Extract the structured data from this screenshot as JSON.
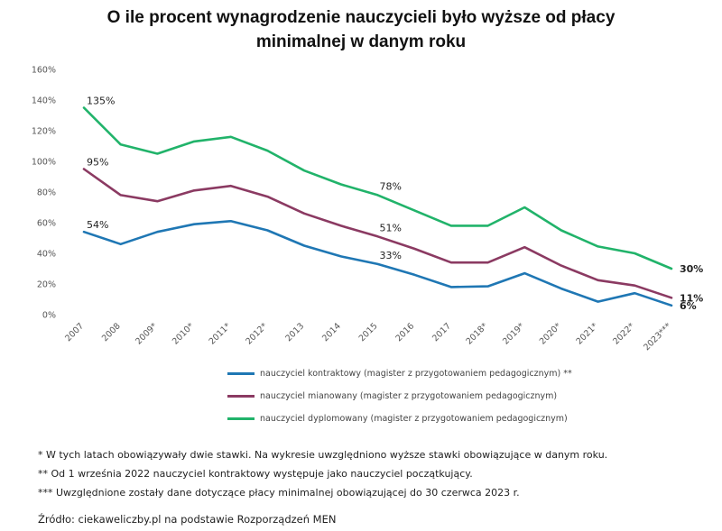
{
  "title_lines": [
    "O ile procent wynagrodzenie nauczycieli było wyższe od płacy",
    "minimalnej w danym roku"
  ],
  "chart_data": {
    "type": "line",
    "title": "O ile procent wynagrodzenie nauczycieli było wyższe od płacy minimalnej w danym roku",
    "categories": [
      "2007",
      "2008",
      "2009*",
      "2010*",
      "2011*",
      "2012*",
      "2013",
      "2014",
      "2015",
      "2016",
      "2017",
      "2018*",
      "2019*",
      "2020*",
      "2021*",
      "2022*",
      "2023***"
    ],
    "y_ticks": [
      "0%",
      "20%",
      "40%",
      "60%",
      "80%",
      "100%",
      "120%",
      "140%",
      "160%"
    ],
    "ylim": [
      0,
      160
    ],
    "grid": false,
    "legend_position": "bottom",
    "series": [
      {
        "name": "nauczyciel kontraktowy (magister z przygotowaniem pedagogicznym) **",
        "color": "#1f77b4",
        "values": [
          54,
          46,
          54,
          59,
          61,
          55,
          45,
          38,
          33,
          26,
          18,
          18.5,
          27,
          17,
          8.5,
          14,
          6
        ]
      },
      {
        "name": "nauczyciel mianowany (magister z przygotowaniem pedagogicznym)",
        "color": "#8b3a62",
        "values": [
          95,
          78,
          74,
          81,
          84,
          77,
          66,
          58,
          51,
          43,
          34,
          34,
          44,
          32,
          22.5,
          19,
          11
        ]
      },
      {
        "name": "nauczyciel dyplomowany (magister z przygotowaniem pedagogicznym)",
        "color": "#21b36a",
        "values": [
          135,
          111,
          105,
          113,
          116,
          107,
          94,
          85,
          78,
          68,
          58,
          58,
          70,
          55,
          44.5,
          40,
          30
        ]
      }
    ],
    "annotations": [
      {
        "series": 0,
        "index": 0,
        "text": "54%",
        "bold": false
      },
      {
        "series": 1,
        "index": 0,
        "text": "95%",
        "bold": false
      },
      {
        "series": 2,
        "index": 0,
        "text": "135%",
        "bold": false
      },
      {
        "series": 0,
        "index": 8,
        "text": "33%",
        "bold": false
      },
      {
        "series": 1,
        "index": 8,
        "text": "51%",
        "bold": false
      },
      {
        "series": 2,
        "index": 8,
        "text": "78%",
        "bold": false
      },
      {
        "series": 2,
        "index": 16,
        "text": "30%",
        "bold": true
      },
      {
        "series": 1,
        "index": 16,
        "text": "11%",
        "bold": true
      },
      {
        "series": 0,
        "index": 16,
        "text": "6%",
        "bold": true
      }
    ]
  },
  "notes": [
    "* W tych latach obowiązywały dwie stawki. Na wykresie uwzględniono wyższe stawki obowiązujące w danym roku.",
    "** Od 1 września 2022 nauczyciel kontraktowy występuje jako nauczyciel początkujący.",
    "*** Uwzględnione zostały dane dotyczące płacy minimalnej obowiązującej do 30 czerwca 2023 r."
  ],
  "source": "Źródło: ciekaweliczby.pl na podstawie Rozporządzeń MEN"
}
